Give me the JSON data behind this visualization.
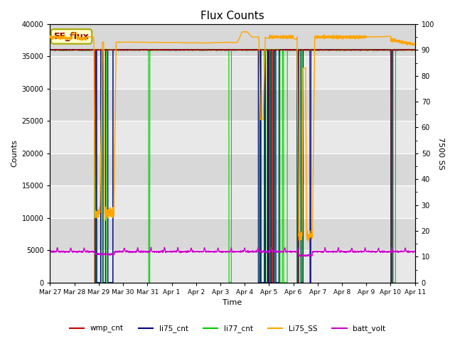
{
  "title": "Flux Counts",
  "xlabel": "Time",
  "ylabel_left": "Counts",
  "ylabel_right": "7500 SS",
  "ylim_left": [
    0,
    40000
  ],
  "ylim_right": [
    0,
    100
  ],
  "plot_bg_color1": "#e8e8e8",
  "plot_bg_color2": "#d8d8d8",
  "xtick_labels": [
    "Mar 27",
    "Mar 28",
    "Mar 29",
    "Mar 30",
    "Mar 31",
    "Apr 1",
    "Apr 2",
    "Apr 3",
    "Apr 4",
    "Apr 5",
    "Apr 6",
    "Apr 7",
    "Apr 8",
    "Apr 9",
    "Apr 10",
    "Apr 11"
  ],
  "xtick_positions": [
    0,
    1,
    2,
    3,
    4,
    5,
    6,
    7,
    8,
    9,
    10,
    11,
    12,
    13,
    14,
    15
  ],
  "legend_entries": [
    "wmp_cnt",
    "li75_cnt",
    "li77_cnt",
    "Li75_SS",
    "batt_volt"
  ],
  "EE_flux_label": "EE_flux",
  "wmp_cnt_color": "#cc0000",
  "li75_cnt_color": "#000088",
  "li77_cnt_color": "#00cc00",
  "Li75_SS_color": "#ffa500",
  "batt_volt_color": "#cc00cc",
  "hline_color": "#00cc00",
  "hline_value": 36000,
  "batt_base": 4800,
  "batt_bump": 5500,
  "cnt_base": 36000
}
